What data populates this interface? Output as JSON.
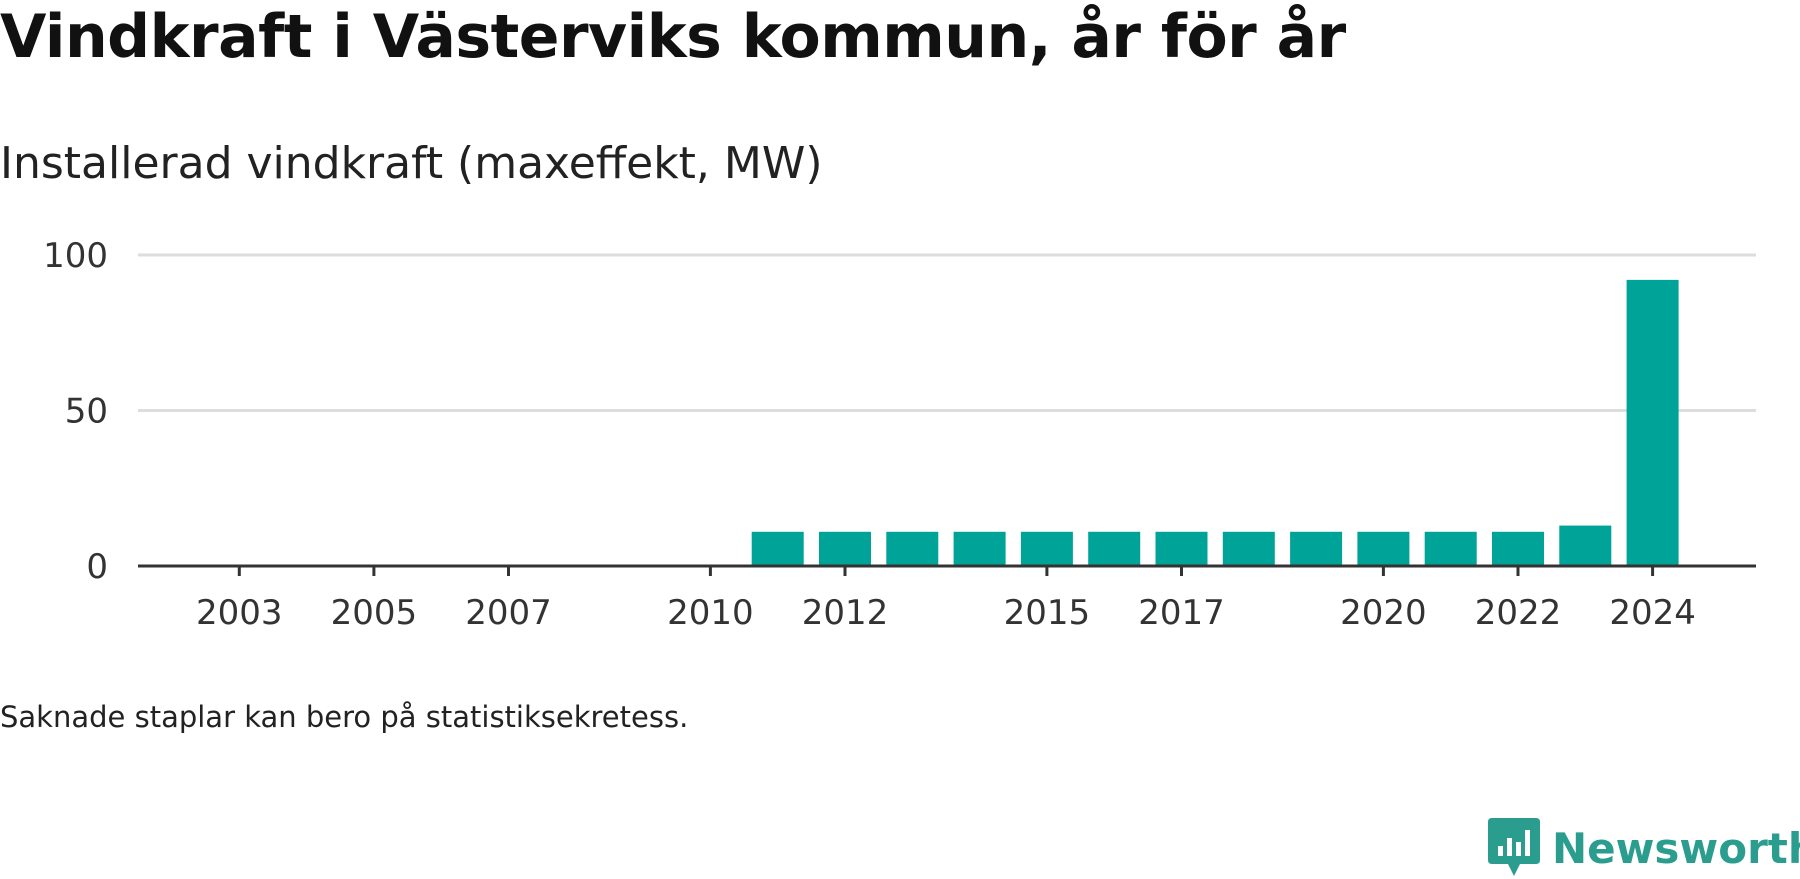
{
  "title": "Vindkraft i Västerviks kommun, år för år",
  "subtitle": "Installerad vindkraft (maxeffekt, MW)",
  "footnote": "Saknade staplar kan bero på statistiksekretess.",
  "brand": "Newsworthy",
  "colors": {
    "bar": "#00a398",
    "grid": "#dddddd",
    "axis": "#333333",
    "brand": "#2a9d8f"
  },
  "chart_data": {
    "type": "bar",
    "categories": [
      "2002",
      "2003",
      "2004",
      "2005",
      "2006",
      "2007",
      "2008",
      "2009",
      "2010",
      "2011",
      "2012",
      "2013",
      "2014",
      "2015",
      "2016",
      "2017",
      "2018",
      "2019",
      "2020",
      "2021",
      "2022",
      "2023",
      "2024"
    ],
    "values": [
      0,
      0,
      0,
      0,
      0,
      0,
      0,
      0,
      0,
      11,
      11,
      11,
      11,
      11,
      11,
      11,
      11,
      11,
      11,
      11,
      11,
      13,
      92
    ],
    "tick_labels": [
      "2003",
      "2005",
      "2007",
      "2010",
      "2012",
      "2015",
      "2017",
      "2020",
      "2022",
      "2024"
    ],
    "y_ticks": [
      0,
      50,
      100
    ],
    "ylim": [
      0,
      100
    ],
    "xlabel": "",
    "ylabel": "",
    "grid": true
  }
}
